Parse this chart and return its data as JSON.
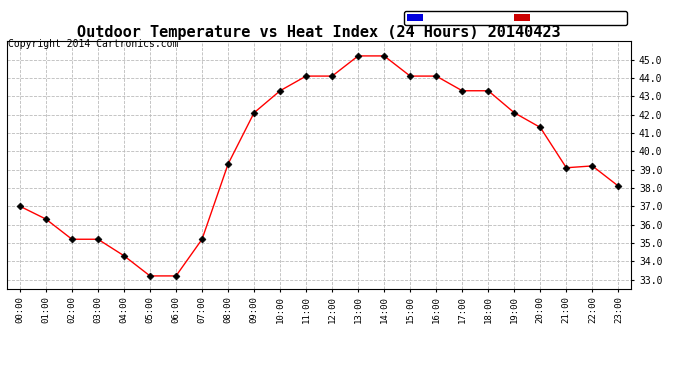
{
  "title": "Outdoor Temperature vs Heat Index (24 Hours) 20140423",
  "copyright": "Copyright 2014 Cartronics.com",
  "hours": [
    "00:00",
    "01:00",
    "02:00",
    "03:00",
    "04:00",
    "05:00",
    "06:00",
    "07:00",
    "08:00",
    "09:00",
    "10:00",
    "11:00",
    "12:00",
    "13:00",
    "14:00",
    "15:00",
    "16:00",
    "17:00",
    "18:00",
    "19:00",
    "20:00",
    "21:00",
    "22:00",
    "23:00"
  ],
  "temperature": [
    37.0,
    36.3,
    35.2,
    35.2,
    34.3,
    33.2,
    33.2,
    35.2,
    39.3,
    42.1,
    43.3,
    44.1,
    44.1,
    45.2,
    45.2,
    44.1,
    44.1,
    43.3,
    43.3,
    42.1,
    41.3,
    39.1,
    39.2,
    38.1
  ],
  "ylim": [
    32.5,
    46.0
  ],
  "yticks": [
    33.0,
    34.0,
    35.0,
    36.0,
    37.0,
    38.0,
    39.0,
    40.0,
    41.0,
    42.0,
    43.0,
    44.0,
    45.0
  ],
  "line_color": "#ff0000",
  "marker_color": "#000000",
  "bg_color": "#ffffff",
  "grid_color": "#bbbbbb",
  "title_fontsize": 11,
  "copyright_fontsize": 7,
  "legend_heat_bg": "#0000dd",
  "legend_temp_bg": "#cc0000",
  "legend_text_color": "#ffffff"
}
